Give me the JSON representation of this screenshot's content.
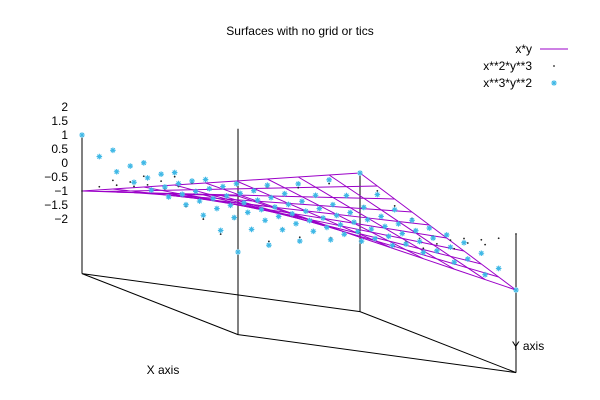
{
  "chart_data": {
    "type": "surface3d",
    "title": "Surfaces with no grid or tics",
    "xlabel": "X axis",
    "ylabel": "Y axis",
    "zlabel": "",
    "xlim": [
      -1,
      1
    ],
    "ylim": [
      -1,
      1
    ],
    "zlim": [
      -2,
      2
    ],
    "grid": false,
    "legend_position": "top-right",
    "z_ticks": [
      "2",
      "1.5",
      "1",
      "0.5",
      "0",
      "−0.5",
      "−1",
      "−1.5",
      "−2"
    ],
    "series": [
      {
        "name": "x*y",
        "expression": "x*y",
        "style": "lines",
        "color": "#9b00c8",
        "samples": 10
      },
      {
        "name": "x**2*y**3",
        "expression": "x**2*y**3",
        "style": "dots",
        "color": "#222222",
        "samples": 10
      },
      {
        "name": "x**3*y**2",
        "expression": "x**3*y**2",
        "style": "points",
        "color": "#3fb8e6",
        "samples": 10
      }
    ]
  }
}
